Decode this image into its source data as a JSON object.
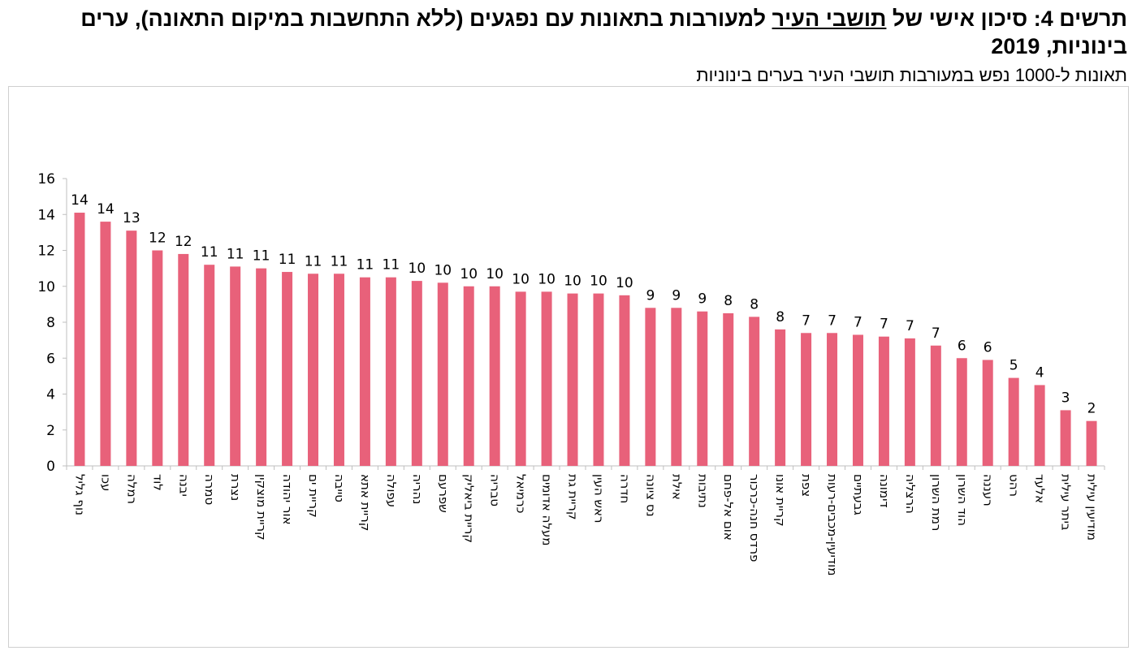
{
  "title": {
    "prefix": "תרשים 4: סיכון אישי של ",
    "underlined": "תושבי העיר",
    "suffix": " למעורבות בתאונות עם נפגעים (ללא התחשבות במיקום התאונה), ערים בינוניות, 2019"
  },
  "subtitle": "תאונות ל-1000 נפש במעורבות תושבי העיר בערים בינוניות",
  "colors": {
    "bar": "#e8617a",
    "axis": "#bfbfbf"
  },
  "chart_data": {
    "type": "bar",
    "categories": [
      "נוף גליל",
      "עכו",
      "רמלה",
      "לוד",
      "יבנה",
      "טמרה",
      "נצרת",
      "קריית מוצקין",
      "אור יהודה",
      "קריית ים",
      "טייבה",
      "קריית אתא",
      "עפולה",
      "נהריה",
      "שפרעם",
      "קריית ביאליק",
      "טבריה",
      "כרמיאל",
      "מעלה אדומים",
      "קריית גת",
      "ראש העין",
      "חדרה",
      "נס ציונה",
      "אילת",
      "נתיבות",
      "אום אל-פחם",
      "פרדס חנה-כרכור",
      "קריית אונו",
      "צפת",
      "מודיעין-מכבים-רעות",
      "גבעתיים",
      "דימונה",
      "הרצליה",
      "רמת השרון",
      "הוד השרון",
      "רעננה",
      "רהט",
      "אלעד",
      "ביתר עילית",
      "מודיעין עילית"
    ],
    "values": [
      14.1,
      13.6,
      13.1,
      12.0,
      11.8,
      11.2,
      11.1,
      11.0,
      10.8,
      10.7,
      10.7,
      10.5,
      10.5,
      10.3,
      10.2,
      10.0,
      10.0,
      9.7,
      9.7,
      9.6,
      9.6,
      9.5,
      8.8,
      8.8,
      8.6,
      8.5,
      8.3,
      7.6,
      7.4,
      7.4,
      7.3,
      7.2,
      7.1,
      6.7,
      6.0,
      5.9,
      4.9,
      4.5,
      3.1,
      2.5
    ],
    "data_labels": [
      "14",
      "14",
      "13",
      "12",
      "12",
      "11",
      "11",
      "11",
      "11",
      "11",
      "11",
      "11",
      "11",
      "10",
      "10",
      "10",
      "10",
      "10",
      "10",
      "10",
      "10",
      "10",
      "9",
      "9",
      "9",
      "8",
      "8",
      "8",
      "7",
      "7",
      "7",
      "7",
      "7",
      "7",
      "6",
      "6",
      "5",
      "4",
      "3",
      "2"
    ],
    "yticks": [
      0,
      2,
      4,
      6,
      8,
      10,
      12,
      14,
      16
    ],
    "ylim": [
      0,
      16
    ],
    "grid": false,
    "legend": "none"
  }
}
